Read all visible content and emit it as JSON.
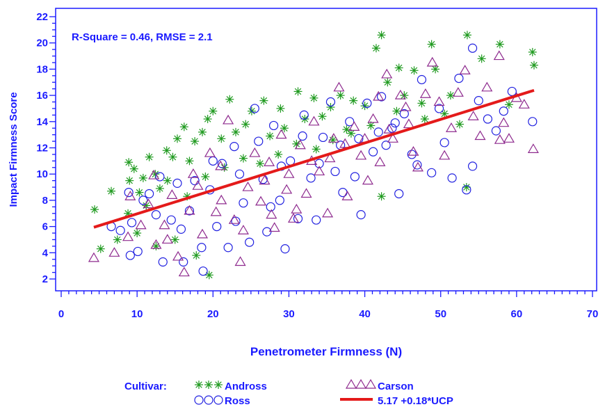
{
  "colors": {
    "axis": "#1a1aff",
    "andross": "#1f9a1f",
    "ross": "#2020e0",
    "carson": "#8e2a8e",
    "fit": "#e41a1a"
  },
  "chart_data": {
    "type": "scatter",
    "annotation": "R-Square = 0.46, RMSE = 2.1",
    "xlabel": "Penetrometer Firmness (N)",
    "ylabel": "Impact Firmness Score",
    "xlim": [
      0,
      70
    ],
    "ylim": [
      1.5,
      22
    ],
    "x_ticks": [
      0,
      10,
      20,
      30,
      40,
      50,
      60,
      70
    ],
    "y_ticks": [
      2,
      4,
      6,
      8,
      10,
      12,
      14,
      16,
      18,
      20,
      22
    ],
    "legend_title": "Cultivar:",
    "legend_placement": "bottom",
    "series": [
      {
        "name": "Andross",
        "marker": "asterisk",
        "points": [
          [
            4.4,
            7.3
          ],
          [
            5.2,
            4.3
          ],
          [
            6.6,
            8.7
          ],
          [
            7.4,
            5.0
          ],
          [
            8.9,
            10.9
          ],
          [
            9.0,
            9.5
          ],
          [
            9.6,
            10.4
          ],
          [
            10.3,
            8.6
          ],
          [
            10.8,
            9.7
          ],
          [
            11.6,
            11.3
          ],
          [
            12.4,
            10.0
          ],
          [
            13.0,
            8.9
          ],
          [
            13.9,
            11.8
          ],
          [
            14.7,
            11.3
          ],
          [
            15.3,
            12.7
          ],
          [
            16.2,
            13.6
          ],
          [
            16.9,
            11.0
          ],
          [
            17.6,
            12.5
          ],
          [
            18.6,
            13.2
          ],
          [
            19.3,
            14.2
          ],
          [
            20.0,
            14.8
          ],
          [
            21.1,
            12.7
          ],
          [
            22.2,
            15.7
          ],
          [
            23.0,
            13.2
          ],
          [
            24.3,
            13.8
          ],
          [
            25.1,
            14.8
          ],
          [
            26.7,
            15.6
          ],
          [
            27.5,
            12.9
          ],
          [
            28.9,
            15.0
          ],
          [
            29.4,
            13.5
          ],
          [
            31.2,
            16.3
          ],
          [
            32.1,
            14.2
          ],
          [
            33.3,
            15.8
          ],
          [
            34.4,
            14.4
          ],
          [
            35.5,
            15.1
          ],
          [
            36.8,
            16.0
          ],
          [
            37.6,
            13.4
          ],
          [
            38.5,
            15.6
          ],
          [
            40.0,
            15.2
          ],
          [
            41.5,
            19.6
          ],
          [
            42.2,
            20.6
          ],
          [
            43.0,
            17.0
          ],
          [
            44.5,
            18.1
          ],
          [
            45.2,
            16.0
          ],
          [
            46.5,
            17.9
          ],
          [
            47.5,
            15.4
          ],
          [
            48.8,
            19.9
          ],
          [
            49.3,
            18.0
          ],
          [
            50.5,
            14.6
          ],
          [
            51.3,
            16.0
          ],
          [
            52.5,
            13.8
          ],
          [
            53.5,
            20.6
          ],
          [
            55.4,
            18.8
          ],
          [
            57.8,
            19.9
          ],
          [
            59.0,
            15.3
          ],
          [
            62.1,
            19.3
          ],
          [
            62.3,
            18.3
          ],
          [
            53.4,
            9.0
          ],
          [
            42.2,
            8.3
          ],
          [
            19.5,
            2.3
          ],
          [
            10.0,
            5.5
          ],
          [
            12.5,
            4.5
          ],
          [
            15.0,
            5.0
          ],
          [
            17.8,
            3.8
          ],
          [
            8.8,
            7.0
          ],
          [
            11.2,
            7.6
          ],
          [
            14.0,
            9.5
          ],
          [
            16.6,
            8.3
          ],
          [
            19.0,
            9.8
          ],
          [
            21.5,
            10.5
          ],
          [
            24.0,
            11.2
          ],
          [
            26.2,
            10.8
          ],
          [
            28.6,
            11.5
          ],
          [
            31.0,
            12.3
          ],
          [
            33.6,
            11.9
          ],
          [
            35.8,
            12.6
          ],
          [
            38.2,
            13.1
          ],
          [
            40.8,
            13.7
          ],
          [
            44.2,
            14.8
          ],
          [
            47.9,
            14.2
          ]
        ]
      },
      {
        "name": "Ross",
        "marker": "circle",
        "points": [
          [
            6.6,
            6.0
          ],
          [
            7.8,
            5.7
          ],
          [
            8.9,
            8.6
          ],
          [
            9.3,
            6.3
          ],
          [
            10.1,
            4.1
          ],
          [
            10.8,
            8.0
          ],
          [
            11.6,
            8.5
          ],
          [
            12.5,
            6.9
          ],
          [
            13.4,
            3.3
          ],
          [
            14.5,
            6.5
          ],
          [
            15.3,
            9.3
          ],
          [
            16.1,
            3.3
          ],
          [
            16.9,
            7.2
          ],
          [
            17.6,
            9.5
          ],
          [
            18.5,
            4.4
          ],
          [
            18.7,
            2.6
          ],
          [
            19.6,
            8.8
          ],
          [
            20.5,
            6.0
          ],
          [
            21.2,
            10.8
          ],
          [
            22.0,
            4.4
          ],
          [
            22.8,
            12.1
          ],
          [
            24.0,
            7.8
          ],
          [
            24.8,
            4.8
          ],
          [
            25.5,
            15.0
          ],
          [
            26.6,
            9.6
          ],
          [
            27.1,
            5.6
          ],
          [
            28.0,
            13.7
          ],
          [
            28.8,
            8.0
          ],
          [
            29.5,
            4.3
          ],
          [
            30.2,
            11.0
          ],
          [
            31.2,
            6.6
          ],
          [
            32.0,
            14.5
          ],
          [
            32.9,
            9.7
          ],
          [
            33.6,
            6.5
          ],
          [
            34.5,
            12.8
          ],
          [
            35.5,
            15.5
          ],
          [
            36.1,
            10.2
          ],
          [
            37.1,
            8.6
          ],
          [
            38.0,
            14.0
          ],
          [
            38.7,
            9.8
          ],
          [
            39.5,
            6.9
          ],
          [
            40.3,
            15.4
          ],
          [
            41.1,
            11.7
          ],
          [
            42.2,
            15.9
          ],
          [
            42.8,
            12.2
          ],
          [
            43.6,
            13.5
          ],
          [
            44.5,
            8.5
          ],
          [
            45.2,
            14.6
          ],
          [
            46.2,
            11.5
          ],
          [
            46.9,
            10.7
          ],
          [
            47.5,
            17.2
          ],
          [
            48.8,
            10.1
          ],
          [
            49.8,
            15.0
          ],
          [
            50.5,
            12.4
          ],
          [
            51.5,
            9.7
          ],
          [
            52.4,
            17.3
          ],
          [
            53.4,
            8.8
          ],
          [
            54.2,
            10.6
          ],
          [
            55.0,
            15.6
          ],
          [
            56.2,
            14.2
          ],
          [
            57.3,
            13.3
          ],
          [
            58.3,
            14.8
          ],
          [
            59.4,
            16.3
          ],
          [
            62.1,
            14.0
          ],
          [
            54.2,
            19.6
          ],
          [
            9.1,
            3.8
          ],
          [
            13.0,
            9.8
          ],
          [
            15.8,
            5.8
          ],
          [
            20.0,
            11.0
          ],
          [
            23.5,
            10.0
          ],
          [
            26.0,
            12.5
          ],
          [
            29.0,
            10.6
          ],
          [
            31.8,
            12.9
          ],
          [
            34.0,
            10.8
          ],
          [
            36.8,
            12.2
          ],
          [
            39.2,
            12.7
          ],
          [
            41.8,
            13.2
          ],
          [
            44.0,
            13.9
          ],
          [
            23.0,
            6.4
          ],
          [
            27.6,
            7.5
          ]
        ]
      },
      {
        "name": "Carson",
        "marker": "triangle",
        "points": [
          [
            4.3,
            3.6
          ],
          [
            7.0,
            4.0
          ],
          [
            8.8,
            5.2
          ],
          [
            10.5,
            6.1
          ],
          [
            11.5,
            7.7
          ],
          [
            12.5,
            4.6
          ],
          [
            13.6,
            6.1
          ],
          [
            14.6,
            8.4
          ],
          [
            15.4,
            3.7
          ],
          [
            16.2,
            2.5
          ],
          [
            16.9,
            7.2
          ],
          [
            17.4,
            10.0
          ],
          [
            18.6,
            5.4
          ],
          [
            19.6,
            11.6
          ],
          [
            20.4,
            7.1
          ],
          [
            21.1,
            8.0
          ],
          [
            22.0,
            14.1
          ],
          [
            22.8,
            6.5
          ],
          [
            23.6,
            3.3
          ],
          [
            24.6,
            9.0
          ],
          [
            25.5,
            11.6
          ],
          [
            26.3,
            7.9
          ],
          [
            27.4,
            10.9
          ],
          [
            28.1,
            5.9
          ],
          [
            29.0,
            13.0
          ],
          [
            29.7,
            8.8
          ],
          [
            30.6,
            6.6
          ],
          [
            31.5,
            12.2
          ],
          [
            32.3,
            8.5
          ],
          [
            33.3,
            14.0
          ],
          [
            34.0,
            10.2
          ],
          [
            35.1,
            7.0
          ],
          [
            35.9,
            12.7
          ],
          [
            36.6,
            16.6
          ],
          [
            37.7,
            8.3
          ],
          [
            38.6,
            13.6
          ],
          [
            39.5,
            11.4
          ],
          [
            40.4,
            9.5
          ],
          [
            41.1,
            14.2
          ],
          [
            42.0,
            10.9
          ],
          [
            42.9,
            17.6
          ],
          [
            43.7,
            12.7
          ],
          [
            44.7,
            16.0
          ],
          [
            45.4,
            15.1
          ],
          [
            46.4,
            11.7
          ],
          [
            47.0,
            10.5
          ],
          [
            48.0,
            16.1
          ],
          [
            48.9,
            18.5
          ],
          [
            49.8,
            15.5
          ],
          [
            50.5,
            11.4
          ],
          [
            51.4,
            13.5
          ],
          [
            52.3,
            16.2
          ],
          [
            53.2,
            17.9
          ],
          [
            54.3,
            14.4
          ],
          [
            55.2,
            12.9
          ],
          [
            56.1,
            16.6
          ],
          [
            57.7,
            19.0
          ],
          [
            58.3,
            13.9
          ],
          [
            59.0,
            12.7
          ],
          [
            60.0,
            15.8
          ],
          [
            61.0,
            15.3
          ],
          [
            62.2,
            11.9
          ],
          [
            57.8,
            12.6
          ],
          [
            41.8,
            15.9
          ],
          [
            9.1,
            8.3
          ],
          [
            12.2,
            9.9
          ],
          [
            14.0,
            5.0
          ],
          [
            18.0,
            9.1
          ],
          [
            21.0,
            10.6
          ],
          [
            24.0,
            5.7
          ],
          [
            26.8,
            9.5
          ],
          [
            30.0,
            10.0
          ],
          [
            33.0,
            11.0
          ],
          [
            35.4,
            11.2
          ],
          [
            37.4,
            12.3
          ],
          [
            40.0,
            12.7
          ],
          [
            43.2,
            13.4
          ],
          [
            45.8,
            13.8
          ],
          [
            27.7,
            6.9
          ],
          [
            31.0,
            7.3
          ]
        ]
      }
    ],
    "fit_line": {
      "label": "5.17 +0.18*UCP",
      "x": [
        4.3,
        62.3
      ]
    }
  }
}
